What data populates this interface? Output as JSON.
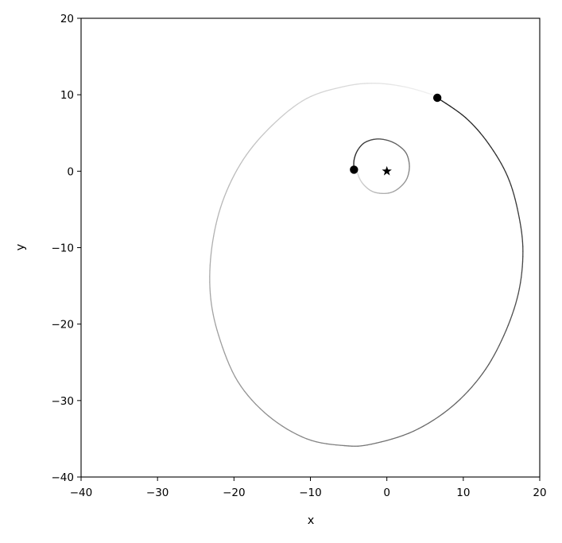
{
  "chart_data": {
    "type": "scatter",
    "title": "",
    "xlabel": "x",
    "ylabel": "y",
    "xlim": [
      -40,
      20
    ],
    "ylim": [
      -40,
      20
    ],
    "x_ticks": [
      -40,
      -30,
      -20,
      -10,
      0,
      10,
      20
    ],
    "y_ticks": [
      -40,
      -30,
      -20,
      -10,
      0,
      10,
      20
    ],
    "x_tick_labels": [
      "−40",
      "−30",
      "−20",
      "−10",
      "0",
      "10",
      "20"
    ],
    "y_tick_labels": [
      "−40",
      "−30",
      "−20",
      "−10",
      "0",
      "10",
      "20"
    ],
    "grid": false,
    "legend": "none",
    "central_star": {
      "x": 0,
      "y": 0,
      "marker": "star",
      "color": "#000000"
    },
    "bodies": [
      {
        "marker": "circle",
        "color": "#000000",
        "current_position": {
          "x": 6.6,
          "y": 9.6
        },
        "trail_shading": "fades from black at current position to light gray at oldest point",
        "trail_color_newest": "#1a1a1a",
        "trail_color_oldest": "#f2f2f2",
        "trail": [
          [
            6.6,
            9.6
          ],
          [
            10.3,
            7.0
          ],
          [
            13.3,
            3.6
          ],
          [
            15.8,
            -0.7
          ],
          [
            17.2,
            -5.5
          ],
          [
            17.8,
            -10.5
          ],
          [
            17.2,
            -16.0
          ],
          [
            15.3,
            -21.5
          ],
          [
            12.5,
            -26.5
          ],
          [
            8.5,
            -30.8
          ],
          [
            3.5,
            -34.0
          ],
          [
            -2.0,
            -35.7
          ],
          [
            -5.5,
            -35.9
          ],
          [
            -10.5,
            -35.0
          ],
          [
            -15.5,
            -32.0
          ],
          [
            -19.5,
            -27.5
          ],
          [
            -22.0,
            -21.5
          ],
          [
            -23.1,
            -16.0
          ],
          [
            -22.9,
            -10.0
          ],
          [
            -21.5,
            -4.0
          ],
          [
            -18.8,
            1.5
          ],
          [
            -15.0,
            6.0
          ],
          [
            -10.5,
            9.5
          ],
          [
            -5.5,
            11.1
          ],
          [
            -1.5,
            11.5
          ],
          [
            2.5,
            11.0
          ],
          [
            6.0,
            10.0
          ]
        ]
      },
      {
        "marker": "circle",
        "color": "#000000",
        "current_position": {
          "x": -4.3,
          "y": 0.2
        },
        "trail_shading": "fades from black at current position to light gray at oldest point",
        "trail_color_newest": "#1a1a1a",
        "trail_color_oldest": "#dedede",
        "trail": [
          [
            -4.3,
            0.2
          ],
          [
            -4.3,
            1.4
          ],
          [
            -3.9,
            2.6
          ],
          [
            -3.1,
            3.6
          ],
          [
            -2.0,
            4.1
          ],
          [
            -0.8,
            4.2
          ],
          [
            0.5,
            3.9
          ],
          [
            1.6,
            3.3
          ],
          [
            2.5,
            2.4
          ],
          [
            2.9,
            1.2
          ],
          [
            2.9,
            0.0
          ],
          [
            2.5,
            -1.2
          ],
          [
            1.6,
            -2.2
          ],
          [
            0.5,
            -2.8
          ],
          [
            -0.8,
            -2.9
          ],
          [
            -2.0,
            -2.6
          ],
          [
            -3.0,
            -1.8
          ],
          [
            -3.6,
            -0.9
          ],
          [
            -3.9,
            0.0
          ]
        ]
      }
    ]
  }
}
